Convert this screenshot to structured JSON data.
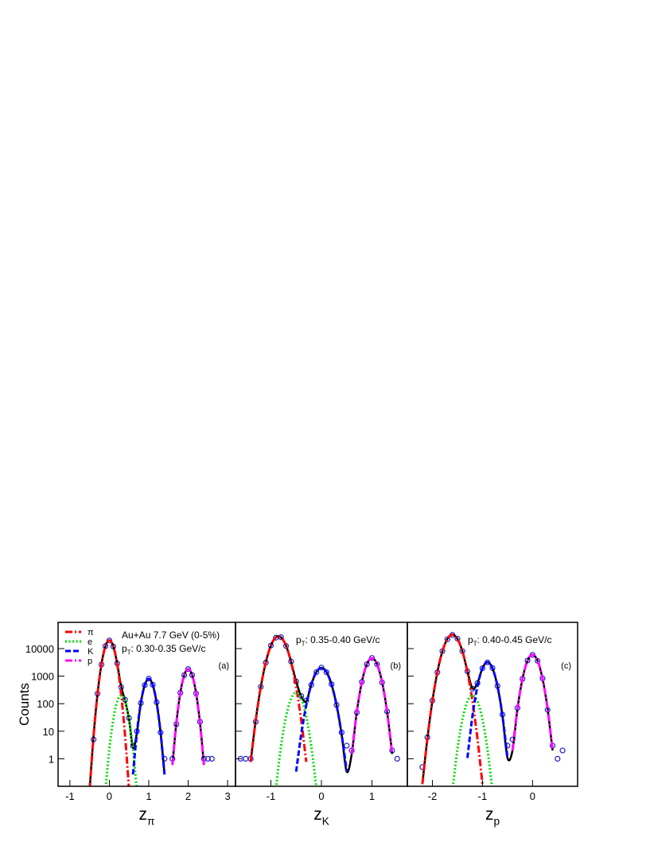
{
  "chart_data": [
    {
      "type": "line",
      "log_y": true,
      "ylabel": "Counts",
      "xlabel": {
        "symbol": "z",
        "sub": "π"
      },
      "energy": "Au+Au 7.7 GeV (0-5%)",
      "pt": {
        "symbol": "p",
        "sub": "T",
        "text": ": 0.30-0.35 GeV/c"
      },
      "panel_label": "(a)",
      "xlim": [
        -1.3,
        3.2
      ],
      "xticks": [
        -1,
        0,
        1,
        2,
        3
      ],
      "ylim": [
        0.1,
        90000
      ],
      "yticks": [
        1,
        10,
        100,
        1000,
        10000
      ],
      "legend": "upper left",
      "x": [
        -0.5,
        -0.4,
        -0.3,
        -0.2,
        -0.1,
        0,
        0.1,
        0.2,
        0.3,
        0.4,
        0.5,
        0.6,
        0.7,
        0.8,
        0.9,
        1.0,
        1.1,
        1.2,
        1.3,
        1.4,
        1.5,
        1.6,
        1.7,
        1.8,
        1.9,
        2.0,
        2.1,
        2.2,
        2.3,
        2.4,
        2.5,
        2.6
      ],
      "series": [
        {
          "marker": "open-circle",
          "color": "#2020d0",
          "values": [
            null,
            5,
            230,
            2650,
            12300,
            19800,
            12000,
            2900,
            400,
            140,
            30,
            3,
            10,
            105,
            470,
            810,
            490,
            112,
            9,
            1,
            null,
            1,
            18,
            250,
            1080,
            1820,
            1100,
            236,
            22,
            1,
            1,
            1
          ]
        },
        {
          "color": "#000000",
          "dash": "solid",
          "values": [
            0.075,
            6.7,
            222,
            2707,
            12131,
            20002,
            12158,
            2828,
            422,
            128,
            27,
            2.5,
            9,
            108,
            485,
            800,
            485,
            108,
            8.9,
            0.27,
            null,
            0.6,
            20,
            244,
            1092,
            1800,
            1092,
            244,
            20,
            0.6,
            null,
            null
          ]
        },
        {
          "name": "π",
          "color": "#ff0000",
          "dash": "dash-dot",
          "values": [
            0.075,
            6.7,
            222,
            2707,
            12131,
            20000,
            12131,
            2707,
            222,
            6.7,
            0.075,
            null,
            null,
            null,
            null,
            null,
            null,
            null,
            null,
            null,
            null,
            null,
            null,
            null,
            null,
            null,
            null,
            null,
            null,
            null,
            null,
            null
          ]
        },
        {
          "name": "e",
          "color": "#00dd00",
          "dash": "dotted",
          "values": [
            null,
            null,
            null,
            null,
            0.067,
            2.2,
            27,
            121,
            200,
            121,
            27,
            2.2,
            0.067,
            null,
            null,
            null,
            null,
            null,
            null,
            null,
            null,
            null,
            null,
            null,
            null,
            null,
            null,
            null,
            null,
            null,
            null,
            null
          ]
        },
        {
          "name": "K",
          "color": "#0000ff",
          "dash": "dashed",
          "values": [
            null,
            null,
            null,
            null,
            null,
            null,
            null,
            null,
            null,
            null,
            null,
            0.27,
            8.9,
            108,
            485,
            800,
            485,
            108,
            8.9,
            0.27,
            null,
            null,
            null,
            null,
            null,
            null,
            null,
            null,
            null,
            null,
            null,
            null
          ]
        },
        {
          "name": "p",
          "color": "#ff00ff",
          "dash": "dash-dot",
          "values": [
            null,
            null,
            null,
            null,
            null,
            null,
            null,
            null,
            null,
            null,
            null,
            null,
            null,
            null,
            null,
            null,
            null,
            null,
            null,
            null,
            null,
            0.6,
            20,
            244,
            1092,
            1800,
            1092,
            244,
            20,
            0.6,
            null,
            null
          ]
        }
      ]
    },
    {
      "type": "line",
      "log_y": true,
      "xlabel": {
        "symbol": "z",
        "sub": "K"
      },
      "pt": {
        "symbol": "p",
        "sub": "T",
        "text": ": 0.35-0.40 GeV/c"
      },
      "panel_label": "(b)",
      "xlim": [
        -1.7,
        1.7
      ],
      "xticks": [
        -1,
        0,
        1
      ],
      "ylim": [
        0.1,
        90000
      ],
      "x": [
        -1.6,
        -1.5,
        -1.4,
        -1.3,
        -1.2,
        -1.1,
        -1.0,
        -0.9,
        -0.8,
        -0.7,
        -0.6,
        -0.5,
        -0.4,
        -0.3,
        -0.2,
        -0.1,
        0,
        0.1,
        0.2,
        0.3,
        0.4,
        0.5,
        0.6,
        0.7,
        0.8,
        0.9,
        1.0,
        1.1,
        1.2,
        1.3,
        1.4,
        1.5
      ],
      "series": [
        {
          "marker": "open-circle",
          "color": "#2020d0",
          "values": [
            1,
            1,
            1,
            22,
            410,
            3100,
            13000,
            25000,
            26000,
            12500,
            3400,
            640,
            190,
            130,
            480,
            1400,
            2050,
            1390,
            510,
            90,
            9,
            3,
            2,
            48,
            620,
            2700,
            4600,
            2700,
            590,
            52,
            2,
            1
          ]
        },
        {
          "color": "#000000",
          "dash": "solid",
          "values": [
            null,
            null,
            0.77,
            25,
            399,
            3194,
            12820,
            25670,
            25673,
            12854,
            3346,
            649,
            185,
            123,
            502,
            1414,
            2000,
            1414,
            499,
            88,
            7.7,
            0.34,
            1.5,
            50,
            609,
            2729,
            4500,
            2729,
            609,
            50,
            1.5,
            null
          ]
        },
        {
          "color": "#ff0000",
          "dash": "dash-dot",
          "values": [
            null,
            null,
            0.77,
            25,
            399,
            3194,
            12820,
            25670,
            25670,
            12820,
            3194,
            399,
            25,
            0.77,
            null,
            null,
            null,
            null,
            null,
            null,
            null,
            null,
            null,
            null,
            null,
            null,
            null,
            null,
            null,
            null,
            null,
            null
          ]
        },
        {
          "color": "#00dd00",
          "dash": "dotted",
          "values": [
            null,
            null,
            null,
            null,
            null,
            null,
            null,
            0.084,
            2.8,
            34,
            152,
            250,
            152,
            34,
            2.8,
            0.084,
            null,
            null,
            null,
            null,
            null,
            null,
            null,
            null,
            null,
            null,
            null,
            null,
            null,
            null,
            null,
            null
          ]
        },
        {
          "color": "#0000ff",
          "dash": "dashed",
          "values": [
            null,
            null,
            null,
            null,
            null,
            null,
            null,
            null,
            null,
            null,
            null,
            0.34,
            7.7,
            88,
            499,
            1414,
            2000,
            1414,
            499,
            88,
            7.7,
            0.34,
            null,
            null,
            null,
            null,
            null,
            null,
            null,
            null,
            null,
            null
          ]
        },
        {
          "color": "#ff00ff",
          "dash": "dash-dot",
          "values": [
            null,
            null,
            null,
            null,
            null,
            null,
            null,
            null,
            null,
            null,
            null,
            null,
            null,
            null,
            null,
            null,
            null,
            null,
            null,
            null,
            null,
            null,
            1.5,
            50,
            609,
            2729,
            4500,
            2729,
            609,
            50,
            1.5,
            null
          ]
        }
      ]
    },
    {
      "type": "line",
      "log_y": true,
      "xlabel": {
        "symbol": "z",
        "sub": "p"
      },
      "pt": {
        "symbol": "p",
        "sub": "T",
        "text": ": 0.40-0.45 GeV/c"
      },
      "panel_label": "(c)",
      "xlim": [
        -2.5,
        0.9
      ],
      "xticks": [
        -2,
        -1,
        0
      ],
      "ylim": [
        0.1,
        90000
      ],
      "x": [
        -2.3,
        -2.2,
        -2.1,
        -2.0,
        -1.9,
        -1.8,
        -1.7,
        -1.6,
        -1.5,
        -1.4,
        -1.3,
        -1.2,
        -1.1,
        -1.0,
        -0.9,
        -0.8,
        -0.7,
        -0.6,
        -0.5,
        -0.4,
        -0.3,
        -0.2,
        -0.1,
        0,
        0.1,
        0.2,
        0.3,
        0.4,
        0.5,
        0.6
      ],
      "series": [
        {
          "marker": "open-circle",
          "color": "#2020d0",
          "values": [
            null,
            0.5,
            6,
            130,
            1380,
            8100,
            22000,
            31500,
            23000,
            8100,
            1500,
            350,
            560,
            1950,
            3150,
            1980,
            440,
            40,
            3,
            5,
            70,
            800,
            3700,
            5950,
            3600,
            830,
            60,
            3,
            1,
            2
          ]
        },
        {
          "color": "#000000",
          "dash": "solid",
          "values": [
            null,
            0.12,
            5.4,
            124,
            1405,
            7968,
            22624,
            32000,
            22626,
            7995,
            1527,
            360,
            559,
            1968,
            3202,
            1941,
            433,
            35.6,
            1.07,
            2.0,
            67,
            812,
            3639,
            6000,
            3639,
            812,
            67,
            2.0,
            null,
            null
          ]
        },
        {
          "color": "#ff0000",
          "dash": "dash-dot",
          "values": [
            null,
            0.12,
            5.4,
            124,
            1405,
            7968,
            22624,
            32000,
            22624,
            7968,
            1405,
            124,
            5.4,
            0.12,
            null,
            null,
            null,
            null,
            null,
            null,
            null,
            null,
            null,
            null,
            null,
            null,
            null,
            null,
            null,
            null
          ]
        },
        {
          "color": "#00dd00",
          "dash": "dotted",
          "values": [
            null,
            null,
            null,
            null,
            null,
            null,
            null,
            0.067,
            2.2,
            27,
            121,
            200,
            121,
            27,
            2.2,
            0.067,
            null,
            null,
            null,
            null,
            null,
            null,
            null,
            null,
            null,
            null,
            null,
            null,
            null,
            null
          ]
        },
        {
          "color": "#0000ff",
          "dash": "dashed",
          "values": [
            null,
            null,
            null,
            null,
            null,
            null,
            null,
            null,
            null,
            null,
            1.07,
            35.6,
            433,
            1941,
            3200,
            1941,
            433,
            35.6,
            1.07,
            null,
            null,
            null,
            null,
            null,
            null,
            null,
            null,
            null,
            null,
            null
          ]
        },
        {
          "color": "#ff00ff",
          "dash": "dash-dot",
          "values": [
            null,
            null,
            null,
            null,
            null,
            null,
            null,
            null,
            null,
            null,
            null,
            null,
            null,
            null,
            null,
            null,
            null,
            null,
            null,
            2.0,
            67,
            812,
            3639,
            6000,
            3639,
            812,
            67,
            2.0,
            null,
            null
          ]
        }
      ]
    }
  ]
}
